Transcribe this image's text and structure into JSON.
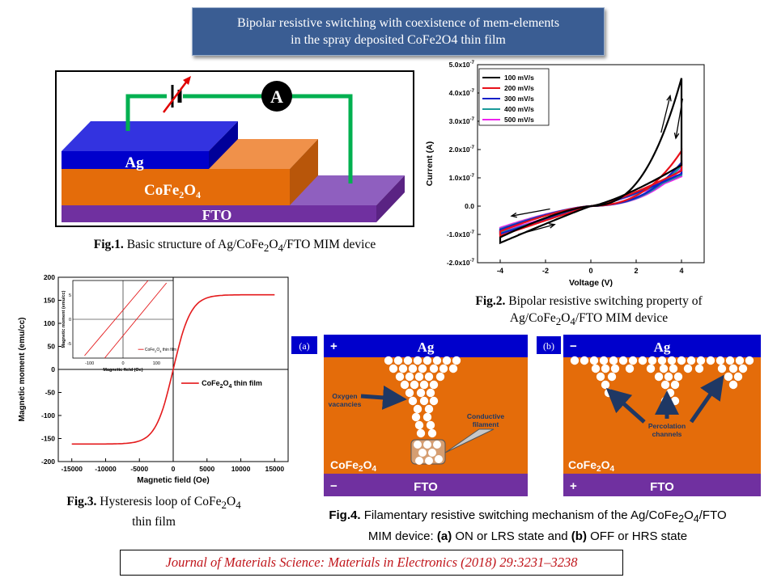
{
  "title": {
    "line1": "Bipolar resistive switching with coexistence of mem-elements",
    "line2": "in the spray deposited CoFe2O4 thin film"
  },
  "fig1": {
    "ammeter": "A",
    "ag": "Ag",
    "cfo_main": "CoFe",
    "cfo_sub1": "2",
    "cfo_mid": "O",
    "cfo_sub2": "4",
    "fto": "FTO",
    "caption_label": "Fig.1.",
    "caption_text": "Basic structure of Ag/CoFe",
    "caption_sub1": "2",
    "caption_mid": "O",
    "caption_sub2": "4",
    "caption_end": "/FTO MIM device"
  },
  "fig2": {
    "caption_label": "Fig.2.",
    "caption_line1": "Bipolar resistive switching property of",
    "caption_line2_a": "Ag/CoFe",
    "caption_line2_sub1": "2",
    "caption_line2_b": "O",
    "caption_line2_sub2": "4",
    "caption_line2_c": "/FTO MIM device"
  },
  "fig3": {
    "caption_label": "Fig.3.",
    "caption_text": "Hysteresis loop of CoFe",
    "caption_sub1": "2",
    "caption_mid": "O",
    "caption_sub2": "4",
    "caption_line2": "thin film"
  },
  "fig4": {
    "panel_a_label": "(a)",
    "panel_b_label": "(b)",
    "plus": "+",
    "minus": "−",
    "ag": "Ag",
    "fto": "FTO",
    "cfo_main": "CoFe",
    "cfo_sub1": "2",
    "cfo_mid": "O",
    "cfo_sub2": "4",
    "oxygen_line1": "Oxygen",
    "oxygen_line2": "vacancies",
    "conductive_line1": "Conductive",
    "conductive_line2": "filament",
    "percolation_line1": "Percolation",
    "percolation_line2": "channels",
    "caption_label": "Fig.4.",
    "caption_line1": "Filamentary resistive switching mechanism of the Ag/CoFe",
    "caption_line1_sub1": "2",
    "caption_line1_mid": "O",
    "caption_line1_sub2": "4",
    "caption_line1_end": "/FTO",
    "caption_line2_a": "MIM device:",
    "caption_line2_b": "(a)",
    "caption_line2_c": "ON or LRS state and",
    "caption_line2_d": "(b)",
    "caption_line2_e": "OFF or HRS state"
  },
  "journal": "Journal of Materials Science: Materials in Electronics (2018) 29:3231–3238",
  "chart_data": [
    {
      "type": "line",
      "id": "iv-curve",
      "xlabel": "Voltage (V)",
      "ylabel": "Current (A)",
      "xlim": [
        -5,
        5
      ],
      "ylim": [
        -2e-07,
        5e-07
      ],
      "x_ticks": [
        -4,
        -2,
        0,
        2,
        4
      ],
      "x_tick_labels": [
        "-4",
        "-2",
        "0",
        "2",
        "4"
      ],
      "y_ticks": [
        -2e-07,
        -1e-07,
        0,
        1e-07,
        2e-07,
        3e-07,
        4e-07,
        5e-07
      ],
      "y_tick_labels": [
        "-2.0x10",
        "-1.0x10",
        "0.0",
        "1.0x10",
        "2.0x10",
        "3.0x10",
        "4.0x10",
        "5.0x10"
      ],
      "y_tick_exponent": "-7",
      "legend_position": "top-left",
      "series": [
        {
          "name": "100 mV/s",
          "color": "#000000",
          "peak": 4.35e-07,
          "return_at_vmax": 1.45e-07,
          "neg_min": -1.3e-07
        },
        {
          "name": "200 mV/s",
          "color": "#e8101a",
          "peak": 1.8e-07,
          "return_at_vmax": 1.25e-07,
          "neg_min": -1.05e-07
        },
        {
          "name": "300 mV/s",
          "color": "#1420c8",
          "peak": 1.4e-07,
          "return_at_vmax": 1.15e-07,
          "neg_min": -9.8e-08
        },
        {
          "name": "400 mV/s",
          "color": "#1a9a9a",
          "peak": 1.3e-07,
          "return_at_vmax": 1.1e-07,
          "neg_min": -9.5e-08
        },
        {
          "name": "500 mV/s",
          "color": "#ee22ee",
          "peak": 1.2e-07,
          "return_at_vmax": 1.05e-07,
          "neg_min": -9e-08
        }
      ]
    },
    {
      "type": "line",
      "id": "hysteresis",
      "xlabel": "Magnetic field (Oe)",
      "ylabel": "Magnetic moment (emu/cc)",
      "xlim": [
        -17000,
        17000
      ],
      "ylim": [
        -200,
        200
      ],
      "x_ticks": [
        -15000,
        -10000,
        -5000,
        0,
        5000,
        10000,
        15000
      ],
      "x_tick_labels": [
        "-15000",
        "-10000",
        "-5000",
        "0",
        "5000",
        "10000",
        "15000"
      ],
      "y_ticks": [
        -200,
        -150,
        -100,
        -50,
        0,
        50,
        100,
        150,
        200
      ],
      "y_tick_labels": [
        "-200",
        "-150",
        "-100",
        "-50",
        "0",
        "50",
        "100",
        "150",
        "200"
      ],
      "saturation": 162,
      "series": [
        {
          "name_main": "CoFe",
          "name_sub1": "2",
          "name_mid": "O",
          "name_sub2": "4",
          "name_end": " thin film",
          "color": "#e41a1c"
        }
      ],
      "inset": {
        "xlabel": "Magnetic field (Oe)",
        "ylabel": "Magnetic moment (emu/cc)",
        "x_tick_labels": [
          "-100",
          "0",
          "100"
        ],
        "y_tick_labels": [
          "5",
          "0",
          "-5"
        ],
        "legend_main": "CoFe",
        "legend_sub1": "2",
        "legend_mid": "O",
        "legend_sub2": "4",
        "legend_end": " thin film",
        "coercivity": 10
      }
    }
  ]
}
